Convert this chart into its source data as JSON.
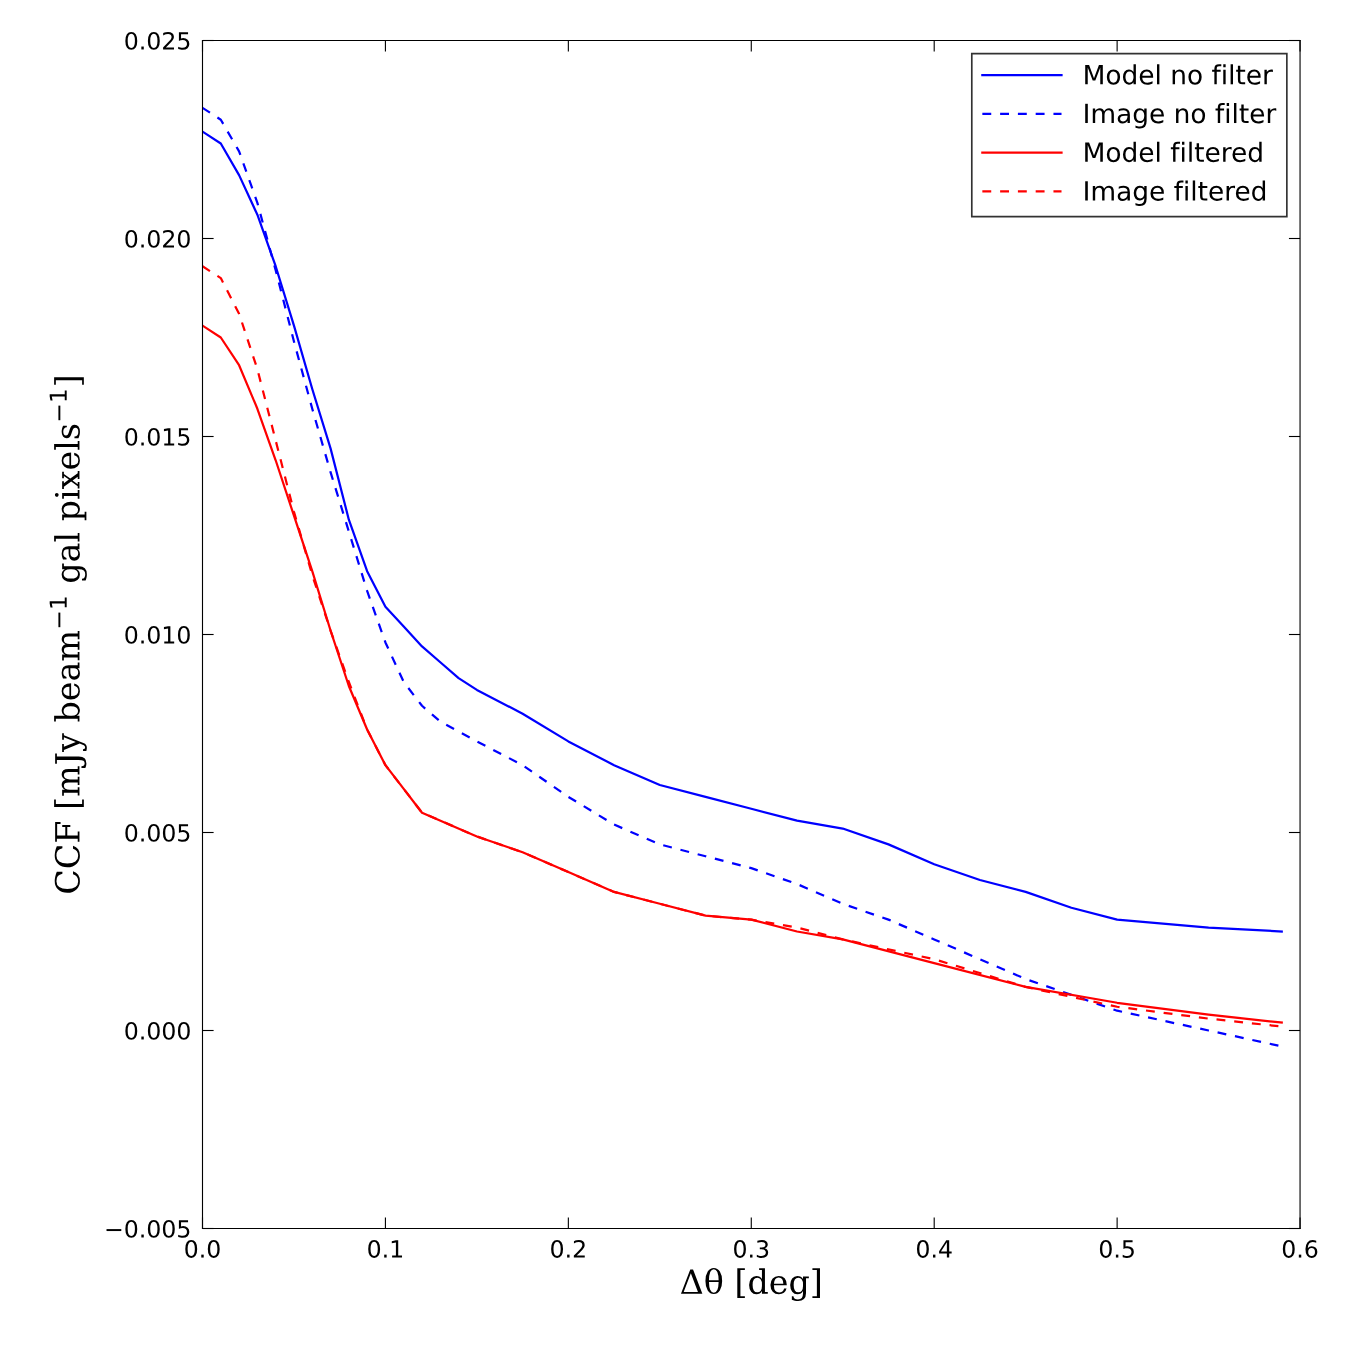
{
  "chart_data": {
    "type": "line",
    "xlabel": "Δθ [deg]",
    "ylabel": "CCF [mJy beam$^{−1}$ gal pixels$^{−1}$]",
    "xlim": [
      0,
      0.6
    ],
    "ylim": [
      -0.005,
      0.025
    ],
    "xticks": [
      {
        "value": 0,
        "label": "0.0"
      },
      {
        "value": 0.1,
        "label": "0.1"
      },
      {
        "value": 0.2,
        "label": "0.2"
      },
      {
        "value": 0.3,
        "label": "0.3"
      },
      {
        "value": 0.4,
        "label": "0.4"
      },
      {
        "value": 0.5,
        "label": "0.5"
      },
      {
        "value": 0.6,
        "label": "0.6"
      }
    ],
    "yticks": [
      {
        "value": -0.005,
        "label": "−0.005"
      },
      {
        "value": 0,
        "label": "0.000"
      },
      {
        "value": 0.005,
        "label": "0.005"
      },
      {
        "value": 0.01,
        "label": "0.010"
      },
      {
        "value": 0.015,
        "label": "0.015"
      },
      {
        "value": 0.02,
        "label": "0.020"
      },
      {
        "value": 0.025,
        "label": "0.025"
      }
    ],
    "grid": false,
    "legend": "top right",
    "marker": "none",
    "series": [
      {
        "name": "Model no filter",
        "color": "#0000ff",
        "line_style": "solid",
        "x": [
          0,
          0.01,
          0.02,
          0.03,
          0.04,
          0.05,
          0.06,
          0.07,
          0.08,
          0.09,
          0.1,
          0.11,
          0.12,
          0.13,
          0.14,
          0.15,
          0.175,
          0.2,
          0.225,
          0.25,
          0.275,
          0.3,
          0.325,
          0.35,
          0.375,
          0.4,
          0.425,
          0.45,
          0.475,
          0.5,
          0.55,
          0.59
        ],
        "values": [
          0.0227,
          0.0224,
          0.0216,
          0.0206,
          0.0193,
          0.0178,
          0.0162,
          0.0147,
          0.0129,
          0.0116,
          0.0107,
          0.0102,
          0.0097,
          0.0093,
          0.0089,
          0.0086,
          0.008,
          0.0073,
          0.0067,
          0.0062,
          0.0059,
          0.0056,
          0.0053,
          0.0051,
          0.0047,
          0.0042,
          0.0038,
          0.0035,
          0.0031,
          0.0028,
          0.0026,
          0.0025
        ]
      },
      {
        "name": "Image no filter",
        "color": "#0000ff",
        "line_style": "dashed",
        "x": [
          0,
          0.01,
          0.02,
          0.03,
          0.04,
          0.05,
          0.06,
          0.07,
          0.08,
          0.09,
          0.1,
          0.11,
          0.12,
          0.13,
          0.15,
          0.175,
          0.2,
          0.225,
          0.25,
          0.275,
          0.3,
          0.325,
          0.35,
          0.375,
          0.4,
          0.45,
          0.475,
          0.5,
          0.55,
          0.59
        ],
        "values": [
          0.0233,
          0.023,
          0.0222,
          0.0209,
          0.0192,
          0.0174,
          0.0157,
          0.0141,
          0.0126,
          0.0111,
          0.0098,
          0.0088,
          0.0082,
          0.0078,
          0.0073,
          0.0067,
          0.0059,
          0.0052,
          0.0047,
          0.0044,
          0.0041,
          0.0037,
          0.0032,
          0.0028,
          0.0023,
          0.0013,
          0.0009,
          0.0005,
          0.0,
          -0.0004
        ]
      },
      {
        "name": "Model filtered",
        "color": "#ff0000",
        "line_style": "solid",
        "x": [
          0,
          0.01,
          0.02,
          0.03,
          0.04,
          0.05,
          0.06,
          0.07,
          0.08,
          0.09,
          0.1,
          0.11,
          0.12,
          0.15,
          0.175,
          0.2,
          0.225,
          0.25,
          0.275,
          0.3,
          0.325,
          0.35,
          0.4,
          0.45,
          0.5,
          0.55,
          0.59
        ],
        "values": [
          0.0178,
          0.0175,
          0.0168,
          0.0157,
          0.0144,
          0.013,
          0.0116,
          0.0101,
          0.0087,
          0.0076,
          0.0067,
          0.0061,
          0.0055,
          0.0049,
          0.0045,
          0.004,
          0.0035,
          0.0032,
          0.0029,
          0.0028,
          0.0025,
          0.0023,
          0.0017,
          0.0011,
          0.0007,
          0.0004,
          0.0002
        ]
      },
      {
        "name": "Image filtered",
        "color": "#ff0000",
        "line_style": "dashed",
        "x": [
          0,
          0.01,
          0.02,
          0.03,
          0.04,
          0.05,
          0.06,
          0.07,
          0.08,
          0.09,
          0.1,
          0.11,
          0.12,
          0.15,
          0.175,
          0.2,
          0.225,
          0.25,
          0.275,
          0.3,
          0.325,
          0.35,
          0.4,
          0.45,
          0.5,
          0.55,
          0.59
        ],
        "values": [
          0.0193,
          0.019,
          0.0181,
          0.0167,
          0.0149,
          0.0131,
          0.0115,
          0.0101,
          0.0088,
          0.0076,
          0.0067,
          0.0061,
          0.0055,
          0.0049,
          0.0045,
          0.004,
          0.0035,
          0.0032,
          0.0029,
          0.0028,
          0.0026,
          0.0023,
          0.0018,
          0.0011,
          0.0006,
          0.0003,
          0.0001
        ]
      }
    ]
  }
}
